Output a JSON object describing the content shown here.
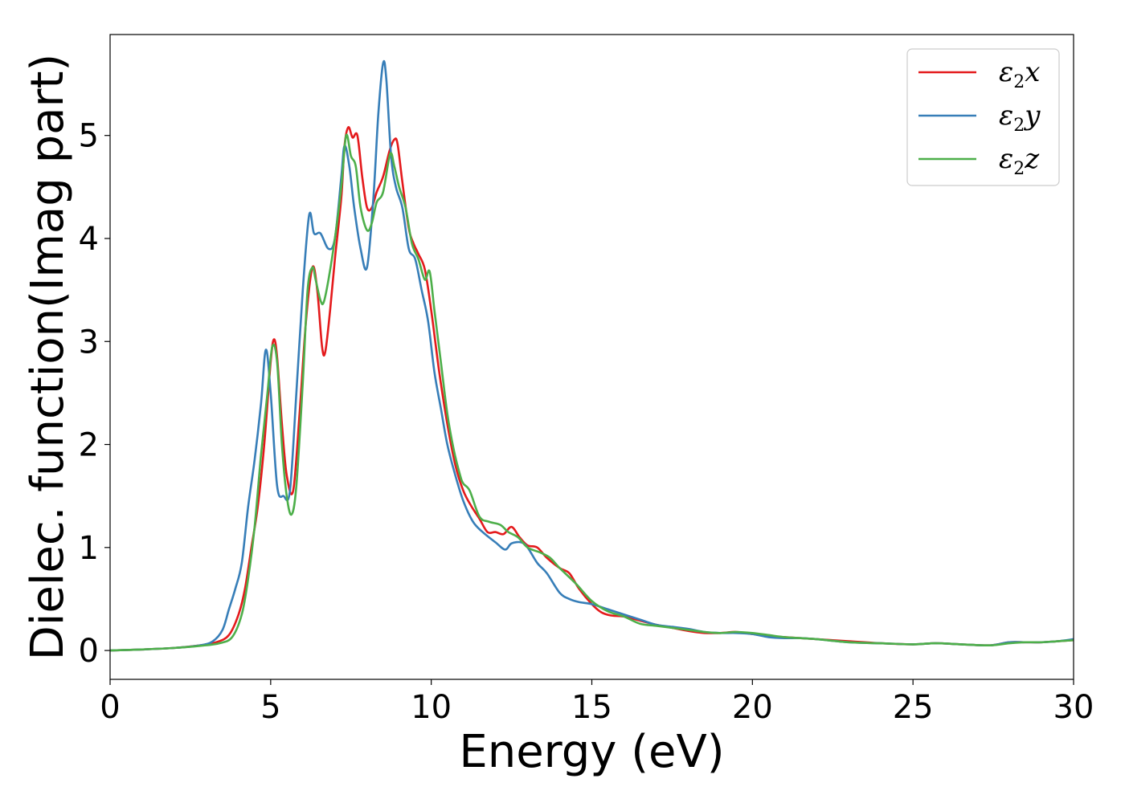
{
  "chart_data": {
    "type": "line",
    "xlabel": "Energy (eV)",
    "ylabel": "Dielec. function(Imag part)",
    "xlim": [
      0,
      30
    ],
    "ylim": [
      -0.28,
      5.98
    ],
    "xticks": [
      0,
      5,
      10,
      15,
      20,
      25,
      30
    ],
    "yticks": [
      0,
      1,
      2,
      3,
      4,
      5
    ],
    "grid": false,
    "legend_position": "top-right",
    "series": [
      {
        "name": "ε2x",
        "legend": {
          "sym": "ε",
          "sub": "2",
          "var": "x"
        },
        "color": "#e41a1c",
        "points": [
          [
            0,
            0.0
          ],
          [
            1,
            0.01
          ],
          [
            2,
            0.025
          ],
          [
            2.8,
            0.05
          ],
          [
            3.3,
            0.08
          ],
          [
            3.7,
            0.15
          ],
          [
            4.0,
            0.35
          ],
          [
            4.2,
            0.6
          ],
          [
            4.4,
            1.0
          ],
          [
            4.6,
            1.4
          ],
          [
            4.8,
            2.0
          ],
          [
            5.0,
            2.8
          ],
          [
            5.1,
            3.02
          ],
          [
            5.2,
            2.85
          ],
          [
            5.35,
            2.2
          ],
          [
            5.5,
            1.7
          ],
          [
            5.7,
            1.55
          ],
          [
            5.9,
            2.3
          ],
          [
            6.1,
            3.2
          ],
          [
            6.3,
            3.72
          ],
          [
            6.45,
            3.5
          ],
          [
            6.6,
            2.95
          ],
          [
            6.7,
            2.9
          ],
          [
            6.85,
            3.3
          ],
          [
            7.0,
            3.8
          ],
          [
            7.2,
            4.4
          ],
          [
            7.3,
            4.9
          ],
          [
            7.42,
            5.08
          ],
          [
            7.55,
            4.98
          ],
          [
            7.7,
            5.0
          ],
          [
            7.85,
            4.6
          ],
          [
            8.0,
            4.3
          ],
          [
            8.15,
            4.3
          ],
          [
            8.3,
            4.45
          ],
          [
            8.5,
            4.6
          ],
          [
            8.7,
            4.85
          ],
          [
            8.85,
            4.96
          ],
          [
            8.95,
            4.92
          ],
          [
            9.1,
            4.55
          ],
          [
            9.3,
            4.1
          ],
          [
            9.45,
            3.95
          ],
          [
            9.6,
            3.85
          ],
          [
            9.8,
            3.7
          ],
          [
            10.0,
            3.3
          ],
          [
            10.25,
            2.7
          ],
          [
            10.5,
            2.2
          ],
          [
            10.75,
            1.8
          ],
          [
            11.0,
            1.55
          ],
          [
            11.25,
            1.4
          ],
          [
            11.5,
            1.28
          ],
          [
            11.75,
            1.15
          ],
          [
            12.0,
            1.15
          ],
          [
            12.25,
            1.13
          ],
          [
            12.5,
            1.2
          ],
          [
            12.75,
            1.1
          ],
          [
            13.0,
            1.02
          ],
          [
            13.3,
            1.0
          ],
          [
            13.6,
            0.9
          ],
          [
            14.0,
            0.8
          ],
          [
            14.3,
            0.75
          ],
          [
            14.6,
            0.6
          ],
          [
            15.0,
            0.45
          ],
          [
            15.3,
            0.37
          ],
          [
            15.6,
            0.34
          ],
          [
            16.0,
            0.33
          ],
          [
            16.5,
            0.29
          ],
          [
            17.0,
            0.25
          ],
          [
            17.5,
            0.22
          ],
          [
            18.0,
            0.19
          ],
          [
            18.5,
            0.17
          ],
          [
            19.0,
            0.17
          ],
          [
            19.5,
            0.18
          ],
          [
            20.0,
            0.16
          ],
          [
            20.5,
            0.14
          ],
          [
            21.0,
            0.13
          ],
          [
            21.5,
            0.12
          ],
          [
            22.0,
            0.11
          ],
          [
            23.0,
            0.09
          ],
          [
            24.0,
            0.07
          ],
          [
            25.0,
            0.06
          ],
          [
            25.7,
            0.07
          ],
          [
            26.5,
            0.06
          ],
          [
            27.4,
            0.05
          ],
          [
            28.0,
            0.08
          ],
          [
            28.5,
            0.08
          ],
          [
            29.0,
            0.08
          ],
          [
            29.5,
            0.09
          ],
          [
            30.0,
            0.1
          ]
        ]
      },
      {
        "name": "ε2y",
        "legend": {
          "sym": "ε",
          "sub": "2",
          "var": "y"
        },
        "color": "#377eb8",
        "points": [
          [
            0,
            0.0
          ],
          [
            1,
            0.01
          ],
          [
            2,
            0.025
          ],
          [
            2.8,
            0.05
          ],
          [
            3.2,
            0.09
          ],
          [
            3.5,
            0.2
          ],
          [
            3.7,
            0.4
          ],
          [
            3.9,
            0.6
          ],
          [
            4.1,
            0.85
          ],
          [
            4.3,
            1.4
          ],
          [
            4.5,
            1.85
          ],
          [
            4.7,
            2.4
          ],
          [
            4.85,
            2.92
          ],
          [
            5.0,
            2.5
          ],
          [
            5.2,
            1.6
          ],
          [
            5.4,
            1.5
          ],
          [
            5.6,
            1.55
          ],
          [
            5.8,
            2.5
          ],
          [
            6.0,
            3.5
          ],
          [
            6.2,
            4.23
          ],
          [
            6.35,
            4.05
          ],
          [
            6.55,
            4.05
          ],
          [
            6.8,
            3.9
          ],
          [
            7.0,
            4.0
          ],
          [
            7.2,
            4.6
          ],
          [
            7.3,
            4.9
          ],
          [
            7.45,
            4.7
          ],
          [
            7.6,
            4.3
          ],
          [
            7.8,
            3.9
          ],
          [
            8.0,
            3.72
          ],
          [
            8.2,
            4.4
          ],
          [
            8.35,
            5.2
          ],
          [
            8.5,
            5.7
          ],
          [
            8.6,
            5.55
          ],
          [
            8.75,
            4.8
          ],
          [
            8.9,
            4.5
          ],
          [
            9.1,
            4.3
          ],
          [
            9.3,
            3.9
          ],
          [
            9.5,
            3.8
          ],
          [
            9.7,
            3.5
          ],
          [
            9.9,
            3.2
          ],
          [
            10.1,
            2.7
          ],
          [
            10.3,
            2.35
          ],
          [
            10.5,
            2.0
          ],
          [
            10.75,
            1.7
          ],
          [
            11.0,
            1.45
          ],
          [
            11.3,
            1.25
          ],
          [
            11.6,
            1.15
          ],
          [
            12.0,
            1.05
          ],
          [
            12.3,
            0.98
          ],
          [
            12.5,
            1.04
          ],
          [
            12.8,
            1.05
          ],
          [
            13.0,
            1.0
          ],
          [
            13.3,
            0.85
          ],
          [
            13.6,
            0.75
          ],
          [
            14.0,
            0.56
          ],
          [
            14.3,
            0.5
          ],
          [
            14.6,
            0.47
          ],
          [
            15.0,
            0.45
          ],
          [
            15.5,
            0.4
          ],
          [
            16.0,
            0.35
          ],
          [
            16.5,
            0.3
          ],
          [
            17.0,
            0.25
          ],
          [
            17.5,
            0.23
          ],
          [
            18.0,
            0.21
          ],
          [
            18.5,
            0.18
          ],
          [
            19.0,
            0.17
          ],
          [
            19.5,
            0.17
          ],
          [
            20.0,
            0.16
          ],
          [
            20.5,
            0.13
          ],
          [
            21.0,
            0.12
          ],
          [
            21.5,
            0.12
          ],
          [
            22.0,
            0.11
          ],
          [
            23.0,
            0.08
          ],
          [
            24.0,
            0.07
          ],
          [
            25.0,
            0.06
          ],
          [
            25.7,
            0.07
          ],
          [
            26.5,
            0.06
          ],
          [
            27.4,
            0.05
          ],
          [
            28.0,
            0.08
          ],
          [
            28.5,
            0.08
          ],
          [
            29.0,
            0.08
          ],
          [
            29.5,
            0.09
          ],
          [
            30.0,
            0.11
          ]
        ]
      },
      {
        "name": "ε2z",
        "legend": {
          "sym": "ε",
          "sub": "2",
          "var": "z"
        },
        "color": "#4daf4a",
        "points": [
          [
            0,
            0.0
          ],
          [
            1,
            0.01
          ],
          [
            2,
            0.025
          ],
          [
            2.8,
            0.045
          ],
          [
            3.4,
            0.07
          ],
          [
            3.8,
            0.13
          ],
          [
            4.1,
            0.35
          ],
          [
            4.3,
            0.7
          ],
          [
            4.5,
            1.2
          ],
          [
            4.7,
            1.9
          ],
          [
            4.9,
            2.5
          ],
          [
            5.05,
            2.95
          ],
          [
            5.2,
            2.8
          ],
          [
            5.35,
            2.0
          ],
          [
            5.5,
            1.5
          ],
          [
            5.65,
            1.32
          ],
          [
            5.8,
            1.6
          ],
          [
            6.0,
            2.6
          ],
          [
            6.15,
            3.5
          ],
          [
            6.3,
            3.72
          ],
          [
            6.4,
            3.6
          ],
          [
            6.55,
            3.4
          ],
          [
            6.65,
            3.38
          ],
          [
            6.8,
            3.6
          ],
          [
            7.0,
            4.0
          ],
          [
            7.2,
            4.5
          ],
          [
            7.35,
            5.0
          ],
          [
            7.5,
            4.8
          ],
          [
            7.65,
            4.7
          ],
          [
            7.8,
            4.3
          ],
          [
            8.0,
            4.08
          ],
          [
            8.15,
            4.15
          ],
          [
            8.3,
            4.35
          ],
          [
            8.5,
            4.45
          ],
          [
            8.72,
            4.82
          ],
          [
            8.85,
            4.7
          ],
          [
            9.0,
            4.5
          ],
          [
            9.2,
            4.3
          ],
          [
            9.4,
            3.95
          ],
          [
            9.6,
            3.8
          ],
          [
            9.8,
            3.6
          ],
          [
            9.95,
            3.68
          ],
          [
            10.1,
            3.3
          ],
          [
            10.3,
            2.8
          ],
          [
            10.5,
            2.3
          ],
          [
            10.7,
            1.95
          ],
          [
            10.9,
            1.7
          ],
          [
            11.0,
            1.62
          ],
          [
            11.2,
            1.55
          ],
          [
            11.5,
            1.3
          ],
          [
            11.8,
            1.25
          ],
          [
            12.15,
            1.22
          ],
          [
            12.4,
            1.15
          ],
          [
            12.7,
            1.1
          ],
          [
            13.0,
            1.0
          ],
          [
            13.4,
            0.95
          ],
          [
            13.7,
            0.9
          ],
          [
            14.0,
            0.8
          ],
          [
            14.5,
            0.65
          ],
          [
            15.0,
            0.48
          ],
          [
            15.5,
            0.38
          ],
          [
            16.0,
            0.33
          ],
          [
            16.5,
            0.26
          ],
          [
            17.0,
            0.24
          ],
          [
            17.5,
            0.22
          ],
          [
            18.0,
            0.2
          ],
          [
            18.5,
            0.18
          ],
          [
            19.0,
            0.17
          ],
          [
            19.5,
            0.18
          ],
          [
            20.0,
            0.17
          ],
          [
            20.5,
            0.15
          ],
          [
            21.0,
            0.13
          ],
          [
            21.5,
            0.12
          ],
          [
            22.0,
            0.11
          ],
          [
            23.0,
            0.08
          ],
          [
            24.0,
            0.07
          ],
          [
            25.0,
            0.06
          ],
          [
            25.7,
            0.07
          ],
          [
            26.5,
            0.06
          ],
          [
            27.4,
            0.05
          ],
          [
            28.0,
            0.07
          ],
          [
            28.5,
            0.08
          ],
          [
            29.0,
            0.08
          ],
          [
            29.5,
            0.09
          ],
          [
            30.0,
            0.1
          ]
        ]
      }
    ]
  }
}
